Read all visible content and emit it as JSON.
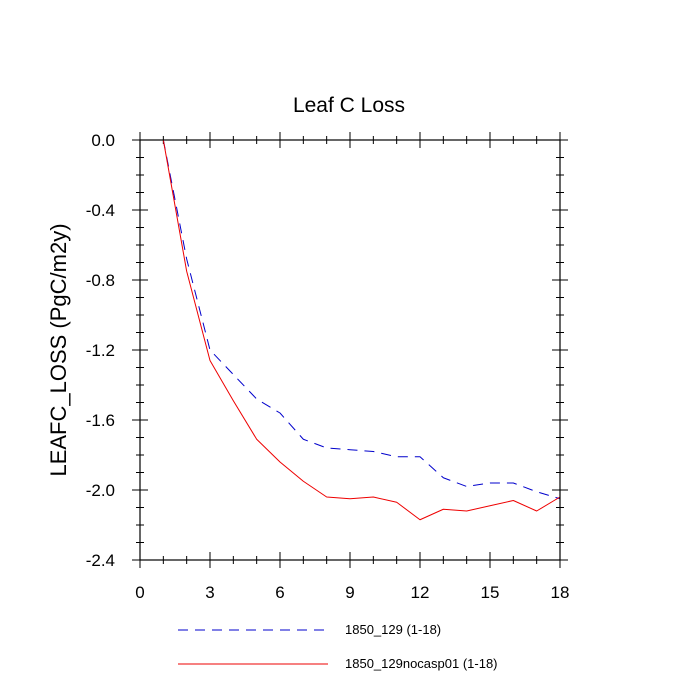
{
  "chart_data": {
    "type": "line",
    "title": "Leaf C Loss",
    "xlabel": "",
    "ylabel": "LEAFC_LOSS  (PgC/m2y)",
    "xlim": [
      0,
      18
    ],
    "ylim": [
      -2.4,
      0.0
    ],
    "x_ticks": [
      0,
      3,
      6,
      9,
      12,
      15,
      18
    ],
    "x_tick_labels": [
      "0",
      "3",
      "6",
      "9",
      "12",
      "15",
      "18"
    ],
    "y_ticks": [
      0.0,
      -0.4,
      -0.8,
      -1.2,
      -1.6,
      -2.0,
      -2.4
    ],
    "y_tick_labels": [
      "0.0",
      "-0.4",
      "-0.8",
      "-1.2",
      "-1.6",
      "-2.0",
      "-2.4"
    ],
    "grid": false,
    "legend_position": "bottom",
    "x": [
      1,
      2,
      3,
      4,
      5,
      6,
      7,
      8,
      9,
      10,
      11,
      12,
      13,
      14,
      15,
      16,
      17,
      18
    ],
    "series": [
      {
        "name": "1850_129 (1-18)",
        "color": "#0000cc",
        "dash": "dashed",
        "values": [
          0.0,
          -0.68,
          -1.2,
          -1.34,
          -1.48,
          -1.56,
          -1.71,
          -1.76,
          -1.77,
          -1.78,
          -1.81,
          -1.81,
          -1.93,
          -1.98,
          -1.96,
          -1.96,
          -2.01,
          -2.05
        ]
      },
      {
        "name": "1850_129nocasp01 (1-18)",
        "color": "#ee0000",
        "dash": "solid",
        "values": [
          0.0,
          -0.75,
          -1.26,
          -1.49,
          -1.71,
          -1.84,
          -1.95,
          -2.04,
          -2.05,
          -2.04,
          -2.07,
          -2.17,
          -2.11,
          -2.12,
          -2.09,
          -2.06,
          -2.12,
          -2.04
        ]
      }
    ]
  }
}
